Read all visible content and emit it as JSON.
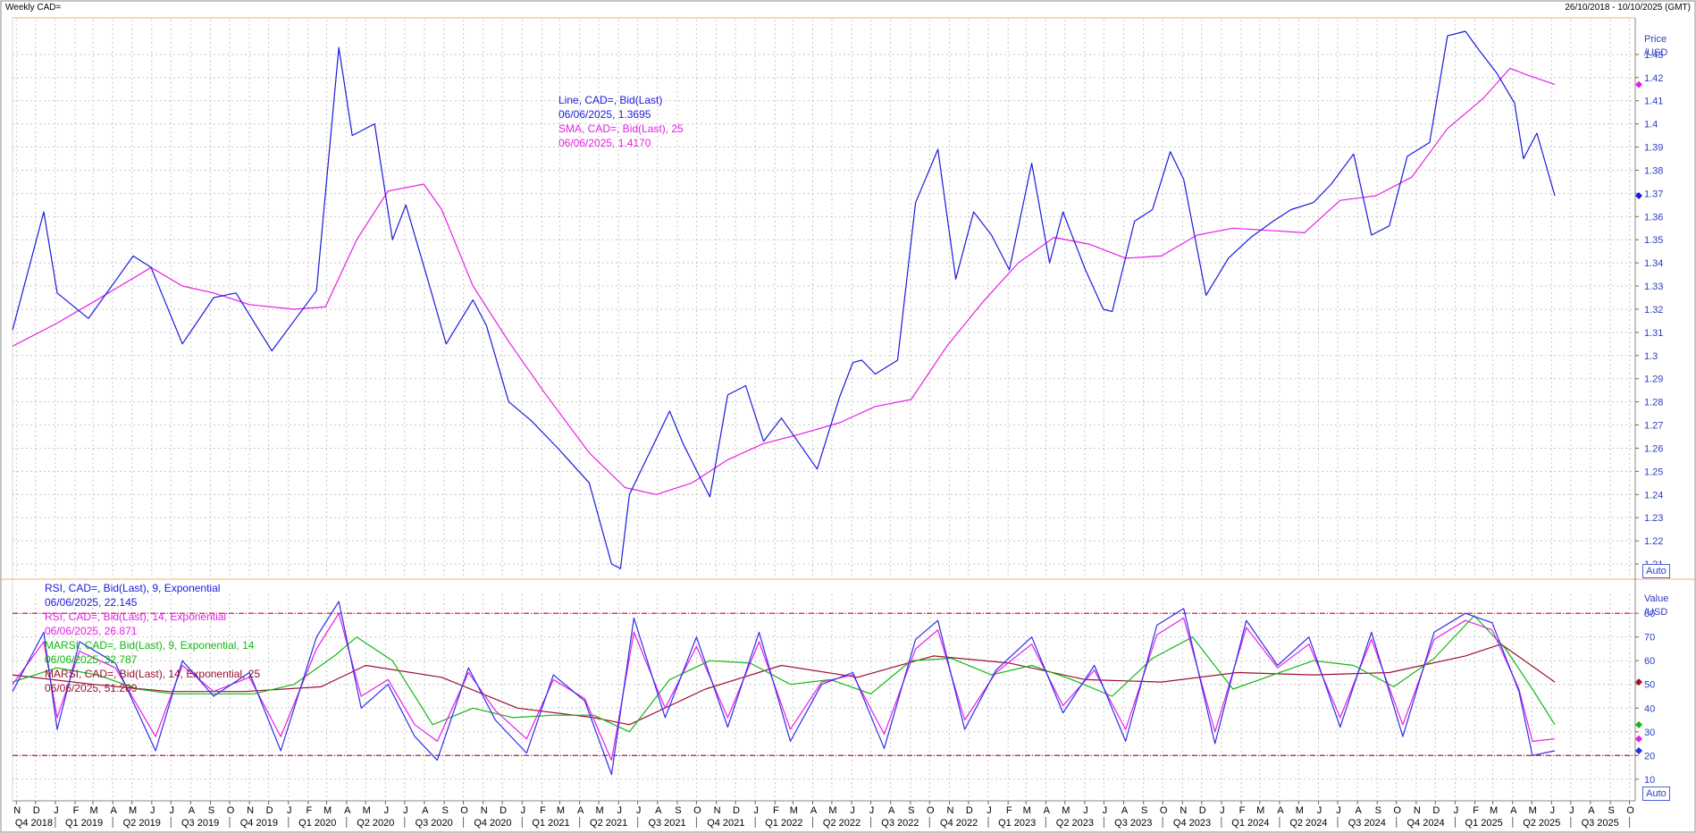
{
  "header": {
    "title": "Weekly CAD=",
    "range": "26/10/2018 - 10/10/2025 (GMT)"
  },
  "price_panel": {
    "unit_line1": "Price",
    "unit_line2": "/USD",
    "auto_label": "Auto",
    "legend": [
      {
        "text": "Line, CAD=, Bid(Last)",
        "color": "#1a1adc"
      },
      {
        "text": "06/06/2025, 1.3695",
        "color": "#1a1adc"
      },
      {
        "text": "SMA, CAD=, Bid(Last),  25",
        "color": "#e61ee6"
      },
      {
        "text": "06/06/2025, 1.4170",
        "color": "#e61ee6"
      }
    ]
  },
  "rsi_panel": {
    "unit_line1": "Value",
    "unit_line2": "/USD",
    "auto_label": "Auto",
    "legend": [
      {
        "text": "RSI, CAD=, Bid(Last),  9, Exponential",
        "color": "#1a1adc"
      },
      {
        "text": "06/06/2025, 22.145",
        "color": "#1a1adc"
      },
      {
        "text": "RSI, CAD=, Bid(Last),  14, Exponential",
        "color": "#e61ee6"
      },
      {
        "text": "06/06/2025, 26.871",
        "color": "#e61ee6"
      },
      {
        "text": "MARSI, CAD=, Bid(Last),  9, Exponential, 14",
        "color": "#12b812"
      },
      {
        "text": "06/06/2025, 32.787",
        "color": "#12b812"
      },
      {
        "text": "MARSI, CAD=, Bid(Last),  14, Exponential, 25",
        "color": "#9a1030"
      },
      {
        "text": "06/06/2025, 51.289",
        "color": "#9a1030"
      }
    ]
  },
  "colors": {
    "line": "#1a1adc",
    "sma": "#e61ee6",
    "rsi9": "#2e2ee8",
    "rsi14": "#e61ee6",
    "marsi9": "#12b812",
    "marsi14": "#9a1030",
    "band": "#c8102e",
    "grid": "#c8c8c8",
    "frame": "#f0b060"
  },
  "chart_data": [
    {
      "type": "line",
      "title": "Weekly CAD=",
      "ylabel": "Price /USD",
      "ylim": [
        1.205,
        1.445
      ],
      "y_ticks": [
        "1.21",
        "1.22",
        "1.23",
        "1.24",
        "1.25",
        "1.26",
        "1.27",
        "1.28",
        "1.29",
        "1.3",
        "1.31",
        "1.32",
        "1.33",
        "1.34",
        "1.35",
        "1.36",
        "1.37",
        "1.38",
        "1.39",
        "1.4",
        "1.41",
        "1.42",
        "1.43"
      ],
      "y_tick_values": [
        1.21,
        1.22,
        1.23,
        1.24,
        1.25,
        1.26,
        1.27,
        1.28,
        1.29,
        1.3,
        1.31,
        1.32,
        1.33,
        1.34,
        1.35,
        1.36,
        1.37,
        1.38,
        1.39,
        1.4,
        1.41,
        1.42,
        1.43
      ],
      "x_range": [
        "2018-10-26",
        "2025-10-10"
      ],
      "grid": true,
      "series": [
        {
          "name": "Line, CAD=, Bid(Last)",
          "color": "#1a1adc",
          "x": [
            "2018-10-26",
            "2018-12-14",
            "2019-01-04",
            "2019-02-22",
            "2019-05-03",
            "2019-05-31",
            "2019-07-19",
            "2019-09-06",
            "2019-10-11",
            "2019-12-06",
            "2020-02-14",
            "2020-03-20",
            "2020-04-10",
            "2020-05-15",
            "2020-06-12",
            "2020-07-03",
            "2020-08-07",
            "2020-09-04",
            "2020-10-16",
            "2020-11-06",
            "2020-12-11",
            "2021-01-15",
            "2021-02-26",
            "2021-04-16",
            "2021-05-21",
            "2021-06-04",
            "2021-06-18",
            "2021-07-16",
            "2021-08-20",
            "2021-09-10",
            "2021-10-22",
            "2021-11-19",
            "2021-12-17",
            "2022-01-14",
            "2022-02-11",
            "2022-03-11",
            "2022-04-08",
            "2022-05-13",
            "2022-06-03",
            "2022-06-17",
            "2022-07-08",
            "2022-08-12",
            "2022-09-09",
            "2022-10-14",
            "2022-11-11",
            "2022-12-09",
            "2023-01-06",
            "2023-02-03",
            "2023-03-10",
            "2023-04-07",
            "2023-04-28",
            "2023-06-02",
            "2023-06-30",
            "2023-07-14",
            "2023-08-18",
            "2023-09-15",
            "2023-10-13",
            "2023-11-03",
            "2023-12-08",
            "2024-01-12",
            "2024-02-16",
            "2024-03-22",
            "2024-04-19",
            "2024-05-24",
            "2024-06-21",
            "2024-07-26",
            "2024-08-23",
            "2024-09-20",
            "2024-10-18",
            "2024-11-22",
            "2024-12-20",
            "2025-01-17",
            "2025-02-07",
            "2025-03-07",
            "2025-04-04",
            "2025-04-18",
            "2025-05-09",
            "2025-06-06"
          ],
          "y": [
            1.311,
            1.362,
            1.327,
            1.316,
            1.343,
            1.338,
            1.305,
            1.325,
            1.327,
            1.302,
            1.328,
            1.433,
            1.395,
            1.4,
            1.35,
            1.365,
            1.332,
            1.305,
            1.324,
            1.313,
            1.28,
            1.272,
            1.26,
            1.245,
            1.21,
            1.208,
            1.24,
            1.256,
            1.276,
            1.262,
            1.239,
            1.283,
            1.287,
            1.263,
            1.273,
            1.262,
            1.251,
            1.282,
            1.297,
            1.298,
            1.292,
            1.298,
            1.366,
            1.389,
            1.333,
            1.362,
            1.352,
            1.337,
            1.383,
            1.34,
            1.362,
            1.337,
            1.32,
            1.319,
            1.358,
            1.363,
            1.388,
            1.376,
            1.326,
            1.342,
            1.351,
            1.358,
            1.363,
            1.366,
            1.374,
            1.387,
            1.352,
            1.356,
            1.386,
            1.392,
            1.438,
            1.44,
            1.432,
            1.422,
            1.409,
            1.385,
            1.396,
            1.369
          ]
        },
        {
          "name": "SMA, CAD=, Bid(Last),  25",
          "color": "#e61ee6",
          "x": [
            "2018-10-26",
            "2019-01-04",
            "2019-03-01",
            "2019-05-31",
            "2019-07-19",
            "2019-09-06",
            "2019-11-01",
            "2020-01-10",
            "2020-02-28",
            "2020-04-17",
            "2020-06-05",
            "2020-07-31",
            "2020-08-28",
            "2020-10-16",
            "2020-12-11",
            "2021-02-05",
            "2021-04-16",
            "2021-06-11",
            "2021-07-30",
            "2021-09-24",
            "2021-11-19",
            "2022-01-14",
            "2022-03-11",
            "2022-05-13",
            "2022-07-08",
            "2022-09-02",
            "2022-10-28",
            "2022-12-23",
            "2023-02-17",
            "2023-04-14",
            "2023-06-09",
            "2023-08-04",
            "2023-09-29",
            "2023-11-24",
            "2024-01-19",
            "2024-03-15",
            "2024-05-10",
            "2024-07-05",
            "2024-08-30",
            "2024-10-25",
            "2024-12-20",
            "2025-02-14",
            "2025-03-28",
            "2025-04-25",
            "2025-06-06"
          ],
          "y": [
            1.304,
            1.314,
            1.323,
            1.338,
            1.33,
            1.327,
            1.322,
            1.32,
            1.321,
            1.35,
            1.371,
            1.374,
            1.363,
            1.33,
            1.306,
            1.284,
            1.258,
            1.243,
            1.24,
            1.245,
            1.255,
            1.262,
            1.266,
            1.271,
            1.278,
            1.281,
            1.304,
            1.323,
            1.34,
            1.351,
            1.348,
            1.342,
            1.343,
            1.352,
            1.355,
            1.354,
            1.353,
            1.367,
            1.369,
            1.377,
            1.398,
            1.411,
            1.424,
            1.421,
            1.417
          ]
        }
      ]
    },
    {
      "type": "line",
      "ylabel": "Value /USD",
      "ylim": [
        2,
        88
      ],
      "y_ticks": [
        "10",
        "20",
        "30",
        "40",
        "50",
        "60",
        "70",
        "80"
      ],
      "y_tick_values": [
        10,
        20,
        30,
        40,
        50,
        60,
        70,
        80
      ],
      "reference_lines": [
        20,
        80
      ],
      "grid": true,
      "series": [
        {
          "name": "RSI, CAD=, Bid(Last),  9, Exponential",
          "color": "#2e2ee8",
          "x": [
            "2018-10-26",
            "2018-12-14",
            "2019-01-04",
            "2019-02-08",
            "2019-04-05",
            "2019-06-07",
            "2019-07-19",
            "2019-09-06",
            "2019-11-01",
            "2019-12-20",
            "2020-02-14",
            "2020-03-20",
            "2020-04-24",
            "2020-06-05",
            "2020-07-17",
            "2020-08-21",
            "2020-10-09",
            "2020-11-20",
            "2021-01-08",
            "2021-02-19",
            "2021-04-09",
            "2021-05-21",
            "2021-06-25",
            "2021-08-13",
            "2021-10-01",
            "2021-11-19",
            "2022-01-07",
            "2022-02-25",
            "2022-04-15",
            "2022-06-03",
            "2022-07-22",
            "2022-09-09",
            "2022-10-14",
            "2022-11-25",
            "2023-01-13",
            "2023-03-10",
            "2023-04-28",
            "2023-06-16",
            "2023-08-04",
            "2023-09-22",
            "2023-11-03",
            "2023-12-22",
            "2024-02-09",
            "2024-03-29",
            "2024-05-17",
            "2024-07-05",
            "2024-08-23",
            "2024-10-11",
            "2024-11-29",
            "2025-01-17",
            "2025-02-28",
            "2025-04-11",
            "2025-05-02",
            "2025-06-06"
          ],
          "y": [
            47,
            72,
            31,
            68,
            59,
            22,
            60,
            45,
            55,
            22,
            70,
            85,
            40,
            50,
            28,
            18,
            57,
            35,
            21,
            54,
            43,
            12,
            78,
            36,
            70,
            32,
            72,
            26,
            50,
            55,
            23,
            69,
            77,
            31,
            56,
            70,
            38,
            58,
            26,
            75,
            82,
            25,
            77,
            58,
            70,
            32,
            72,
            28,
            72,
            80,
            76,
            47,
            20,
            22
          ]
        },
        {
          "name": "RSI, CAD=, Bid(Last),  14, Exponential",
          "color": "#e61ee6",
          "x": [
            "2018-10-26",
            "2018-12-14",
            "2019-01-04",
            "2019-02-08",
            "2019-04-05",
            "2019-06-07",
            "2019-07-19",
            "2019-09-06",
            "2019-11-01",
            "2019-12-20",
            "2020-02-14",
            "2020-03-20",
            "2020-04-24",
            "2020-06-05",
            "2020-07-17",
            "2020-08-21",
            "2020-10-09",
            "2020-11-20",
            "2021-01-08",
            "2021-02-19",
            "2021-04-09",
            "2021-05-21",
            "2021-06-25",
            "2021-08-13",
            "2021-10-01",
            "2021-11-19",
            "2022-01-07",
            "2022-02-25",
            "2022-04-15",
            "2022-06-03",
            "2022-07-22",
            "2022-09-09",
            "2022-10-14",
            "2022-11-25",
            "2023-01-13",
            "2023-03-10",
            "2023-04-28",
            "2023-06-16",
            "2023-08-04",
            "2023-09-22",
            "2023-11-03",
            "2023-12-22",
            "2024-02-09",
            "2024-03-29",
            "2024-05-17",
            "2024-07-05",
            "2024-08-23",
            "2024-10-11",
            "2024-11-29",
            "2025-01-17",
            "2025-02-28",
            "2025-04-11",
            "2025-05-02",
            "2025-06-06"
          ],
          "y": [
            50,
            68,
            36,
            64,
            57,
            28,
            58,
            47,
            53,
            28,
            65,
            80,
            45,
            52,
            33,
            26,
            55,
            39,
            27,
            52,
            44,
            18,
            72,
            40,
            66,
            36,
            68,
            31,
            51,
            54,
            29,
            65,
            73,
            35,
            55,
            67,
            41,
            56,
            31,
            71,
            78,
            30,
            74,
            57,
            67,
            36,
            69,
            33,
            69,
            77,
            73,
            48,
            26,
            27
          ]
        },
        {
          "name": "MARSI, CAD=, Bid(Last),  9, Exponential, 14",
          "color": "#12b812",
          "x": [
            "2018-10-26",
            "2019-01-04",
            "2019-03-08",
            "2019-05-10",
            "2019-07-05",
            "2019-09-06",
            "2019-11-08",
            "2020-01-10",
            "2020-03-13",
            "2020-04-17",
            "2020-06-12",
            "2020-08-14",
            "2020-10-16",
            "2020-12-18",
            "2021-02-19",
            "2021-04-23",
            "2021-06-18",
            "2021-08-20",
            "2021-10-22",
            "2021-12-24",
            "2022-02-25",
            "2022-04-29",
            "2022-07-01",
            "2022-09-02",
            "2022-11-04",
            "2023-01-06",
            "2023-03-10",
            "2023-05-12",
            "2023-07-14",
            "2023-09-15",
            "2023-11-17",
            "2024-01-19",
            "2024-03-22",
            "2024-05-24",
            "2024-07-26",
            "2024-09-27",
            "2024-11-29",
            "2025-01-31",
            "2025-03-21",
            "2025-05-02",
            "2025-06-06"
          ],
          "y": [
            51,
            57,
            54,
            48,
            46,
            46,
            46,
            50,
            62,
            70,
            60,
            33,
            40,
            36,
            37,
            37,
            30,
            52,
            60,
            59,
            50,
            52,
            46,
            60,
            61,
            54,
            58,
            52,
            45,
            61,
            70,
            48,
            54,
            60,
            58,
            49,
            61,
            79,
            65,
            48,
            33
          ]
        },
        {
          "name": "MARSI, CAD=, Bid(Last),  14, Exponential, 25",
          "color": "#9a1030",
          "x": [
            "2018-10-26",
            "2019-03-01",
            "2019-06-28",
            "2019-10-25",
            "2020-02-21",
            "2020-05-01",
            "2020-08-28",
            "2020-12-25",
            "2021-04-23",
            "2021-06-18",
            "2021-10-15",
            "2022-02-11",
            "2022-06-10",
            "2022-10-07",
            "2023-02-03",
            "2023-06-02",
            "2023-09-29",
            "2024-01-26",
            "2024-05-24",
            "2024-09-20",
            "2025-01-17",
            "2025-03-14",
            "2025-06-06"
          ],
          "y": [
            54,
            50,
            47,
            47,
            49,
            58,
            53,
            40,
            36,
            33,
            48,
            58,
            53,
            62,
            59,
            52,
            51,
            55,
            54,
            55,
            62,
            67,
            51
          ]
        }
      ]
    }
  ],
  "x_axis": {
    "months": [
      "N",
      "D",
      "J",
      "F",
      "M",
      "A",
      "M",
      "J",
      "J",
      "A",
      "S",
      "O",
      "N",
      "D",
      "J",
      "F",
      "M",
      "A",
      "M",
      "J",
      "J",
      "A",
      "S",
      "O",
      "N",
      "D",
      "J",
      "F",
      "M",
      "A",
      "M",
      "J",
      "J",
      "A",
      "S",
      "O",
      "N",
      "D",
      "J",
      "F",
      "M",
      "A",
      "M",
      "J",
      "J",
      "A",
      "S",
      "O",
      "N",
      "D",
      "J",
      "F",
      "M",
      "A",
      "M",
      "J",
      "J",
      "A",
      "S",
      "O",
      "N",
      "D",
      "J",
      "F",
      "M",
      "A",
      "M",
      "J",
      "J",
      "A",
      "S",
      "O",
      "N",
      "D",
      "J",
      "F",
      "M",
      "A",
      "M",
      "J",
      "J",
      "A",
      "S",
      "O",
      "N",
      "D",
      "J",
      "F",
      "M",
      "A",
      "M",
      "J",
      "J",
      "A",
      "S",
      "O"
    ],
    "quarters": [
      "Q4 2018",
      "Q1 2019",
      "Q2 2019",
      "Q3 2019",
      "Q4 2019",
      "Q1 2020",
      "Q2 2020",
      "Q3 2020",
      "Q4 2020",
      "Q1 2021",
      "Q2 2021",
      "Q3 2021",
      "Q4 2021",
      "Q1 2022",
      "Q2 2022",
      "Q3 2022",
      "Q4 2022",
      "Q1 2023",
      "Q2 2023",
      "Q3 2023",
      "Q4 2023",
      "Q1 2024",
      "Q2 2024",
      "Q3 2024",
      "Q4 2024",
      "Q1 2025",
      "Q2 2025",
      "Q3 2025"
    ]
  }
}
